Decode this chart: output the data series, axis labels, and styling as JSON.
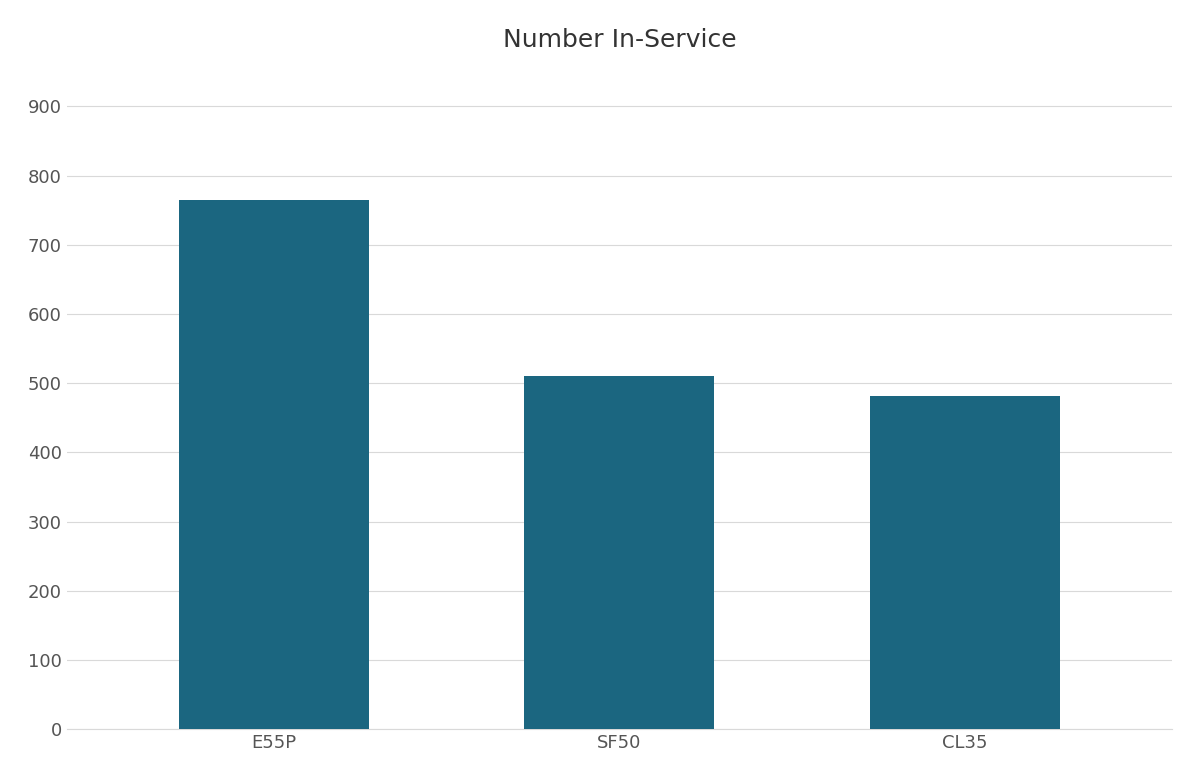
{
  "categories": [
    "E55P",
    "SF50",
    "CL35"
  ],
  "values": [
    765,
    510,
    482
  ],
  "bar_color": "#1b6680",
  "title": "Number In-Service",
  "title_fontsize": 18,
  "ylim": [
    0,
    950
  ],
  "yticks": [
    0,
    100,
    200,
    300,
    400,
    500,
    600,
    700,
    800,
    900
  ],
  "background_color": "#ffffff",
  "grid_color": "#d9d9d9",
  "tick_label_fontsize": 13,
  "bar_width": 0.55,
  "x_positions": [
    0,
    1,
    2
  ]
}
